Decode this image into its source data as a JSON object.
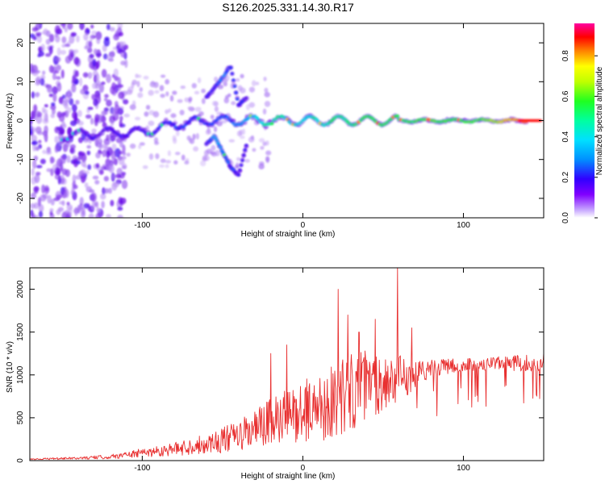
{
  "title": "S126.2025.331.14.30.R17",
  "colors": {
    "snr_line": "#e83030",
    "spec_low": "#dcc8f5",
    "spec_mid1": "#7020e0",
    "spec_mid2": "#20b0ff",
    "spec_mid3": "#30e030",
    "spec_high": "#ff2020"
  },
  "chart_data": [
    {
      "type": "heatmap",
      "title": "S126.2025.331.14.30.R17",
      "xlabel": "Height of straight line (km)",
      "ylabel": "Frequency (Hz)",
      "xlim": [
        -170,
        150
      ],
      "ylim": [
        -25,
        25
      ],
      "x_ticks": [
        -100,
        0,
        100
      ],
      "y_ticks": [
        -20,
        -10,
        0,
        10,
        20
      ],
      "colorbar": {
        "label": "Normalized spectral amplitude",
        "range": [
          0,
          0.96
        ],
        "ticks": [
          0.0,
          0.2,
          0.4,
          0.6,
          0.8
        ],
        "colormap": "rainbow"
      },
      "ridges": [
        {
          "name": "main-band",
          "x": [
            -150,
            -120,
            -100,
            -80,
            -60,
            -40,
            -20,
            0,
            20,
            50,
            80,
            110,
            140
          ],
          "freq": [
            -4,
            -3,
            -3,
            -1,
            0,
            0,
            0,
            0,
            0,
            0,
            0,
            0,
            0
          ],
          "amplitude": [
            0.25,
            0.3,
            0.3,
            0.35,
            0.35,
            0.4,
            0.55,
            0.5,
            0.55,
            0.6,
            0.6,
            0.6,
            0.9
          ]
        },
        {
          "name": "upper-branch",
          "x": [
            -60,
            -50,
            -45,
            -40,
            -35
          ],
          "freq": [
            6,
            11,
            14,
            4,
            6
          ],
          "amplitude": [
            0.3,
            0.4,
            0.35,
            0.35,
            0.3
          ]
        },
        {
          "name": "lower-branch",
          "x": [
            -60,
            -55,
            -45,
            -40,
            -35
          ],
          "freq": [
            -6,
            -4,
            -12,
            -14,
            -6
          ],
          "amplitude": [
            0.3,
            0.45,
            0.35,
            0.3,
            0.3
          ]
        }
      ]
    },
    {
      "type": "line",
      "title": "",
      "xlabel": "Height of straight line (km)",
      "ylabel": "SNR (10 * v/v)",
      "xlim": [
        -170,
        150
      ],
      "ylim": [
        0,
        2250
      ],
      "x_ticks": [
        -100,
        0,
        100
      ],
      "y_ticks": [
        0,
        500,
        1000,
        1500,
        2000
      ],
      "series": [
        {
          "name": "SNR",
          "trend_x": [
            -170,
            -140,
            -120,
            -100,
            -80,
            -60,
            -40,
            -20,
            0,
            10,
            20,
            30,
            40,
            50,
            60,
            70,
            80,
            100,
            120,
            140,
            150
          ],
          "trend_mean": [
            20,
            30,
            50,
            100,
            150,
            220,
            320,
            500,
            650,
            700,
            800,
            900,
            950,
            1000,
            1000,
            1050,
            1100,
            1130,
            1150,
            1160,
            1180
          ],
          "trend_spread": [
            15,
            20,
            40,
            80,
            120,
            180,
            280,
            450,
            550,
            600,
            700,
            700,
            650,
            550,
            450,
            250,
            150,
            120,
            120,
            150,
            180
          ],
          "peaks": [
            [
              -20,
              1250
            ],
            [
              22,
              2000
            ],
            [
              28,
              1700
            ],
            [
              45,
              1650
            ],
            [
              59,
              2250
            ],
            [
              68,
              1550
            ],
            [
              -10,
              1350
            ],
            [
              35,
              1500
            ]
          ]
        }
      ]
    }
  ]
}
